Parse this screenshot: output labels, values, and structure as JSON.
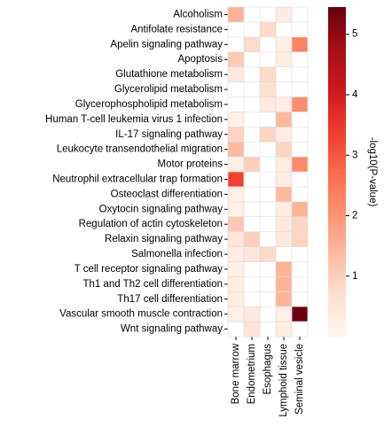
{
  "chart_data": {
    "type": "heatmap",
    "x_categories": [
      "Bone marrow",
      "Endometrium",
      "Esophagus",
      "Lymphoid tissue",
      "Seminal vesicle"
    ],
    "y_categories": [
      "Alcoholism",
      "Antifolate resistance",
      "Apelin signaling pathway",
      "Apoptosis",
      "Glutathione metabolism",
      "Glycerolipid metabolism",
      "Glycerophospholipid metabolism",
      "Human T-cell leukemia virus 1 infection",
      "IL-17 signaling pathway",
      "Leukocyte transendothelial migration",
      "Motor proteins",
      "Neutrophil extracellular trap formation",
      "Osteoclast differentiation",
      "Oxytocin signaling pathway",
      "Regulation of actin cytoskeleton",
      "Relaxin signaling pathway",
      "Salmonella infection",
      "T cell receptor signaling pathway",
      "Th1 and Th2 cell differentiation",
      "Th17 cell differentiation",
      "Vascular smooth muscle contraction",
      "Wnt signaling pathway"
    ],
    "values": [
      [
        1.5,
        null,
        null,
        0.3,
        null
      ],
      [
        null,
        null,
        0.8,
        null,
        null
      ],
      [
        null,
        0.8,
        null,
        0.2,
        2.3
      ],
      [
        1.1,
        null,
        null,
        0.3,
        null
      ],
      [
        0.4,
        null,
        0.8,
        null,
        null
      ],
      [
        null,
        null,
        0.7,
        null,
        null
      ],
      [
        null,
        null,
        0.4,
        0.3,
        2.1
      ],
      [
        0.2,
        null,
        null,
        1.4,
        null
      ],
      [
        0.9,
        null,
        0.9,
        0.3,
        null
      ],
      [
        1.4,
        null,
        null,
        0.9,
        null
      ],
      [
        0.2,
        1.0,
        null,
        0.3,
        2.2
      ],
      [
        3.3,
        null,
        null,
        0.3,
        null
      ],
      [
        0.2,
        null,
        null,
        1.4,
        null
      ],
      [
        0.2,
        null,
        null,
        0.3,
        1.5
      ],
      [
        1.1,
        null,
        null,
        0.4,
        0.9
      ],
      [
        0.5,
        1.0,
        null,
        0.4,
        0.9
      ],
      [
        0.3,
        0.5,
        0.8,
        null,
        null
      ],
      [
        0.2,
        null,
        null,
        1.5,
        null
      ],
      [
        0.3,
        null,
        null,
        1.5,
        null
      ],
      [
        0.3,
        null,
        null,
        1.5,
        null
      ],
      [
        0.2,
        0.4,
        null,
        0.2,
        5.4
      ],
      [
        null,
        0.6,
        null,
        0.3,
        null
      ]
    ],
    "colorbar_label": "-log10(P-value)",
    "clim": [
      0,
      5.45
    ],
    "cticks": [
      1,
      2,
      3,
      4,
      5
    ],
    "colormap": [
      "#fff5f0",
      "#fee0d2",
      "#fcbba1",
      "#fc9272",
      "#fb6a4a",
      "#ef3b2c",
      "#cb181d",
      "#a50f15",
      "#67000d"
    ]
  }
}
